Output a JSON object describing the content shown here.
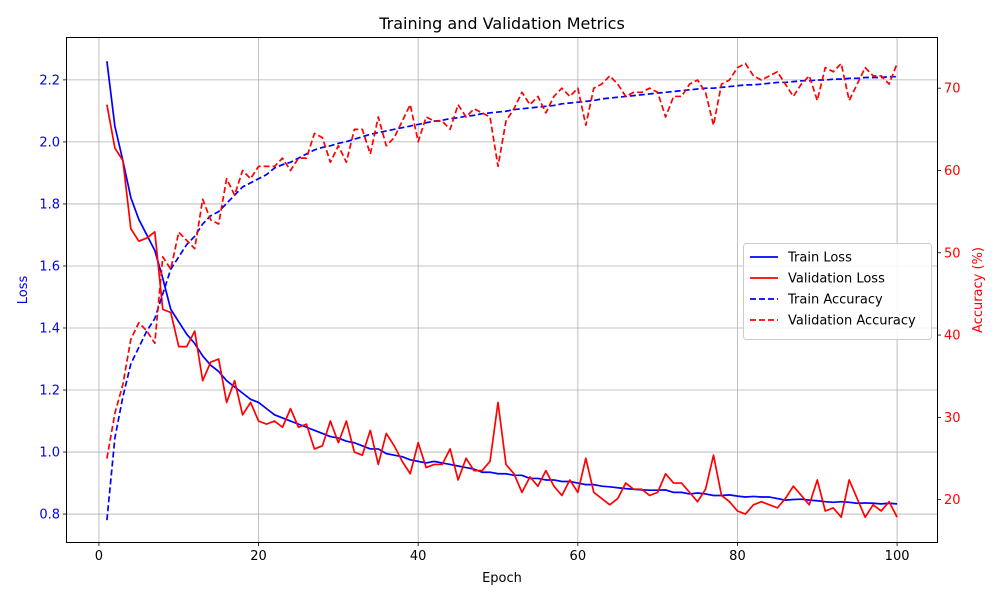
{
  "chart_data": {
    "type": "line",
    "title": "Training and Validation Metrics",
    "xlabel": "Epoch",
    "ylabel_left": "Loss",
    "ylabel_right": "Accuracy (%)",
    "xlim": [
      -4,
      105
    ],
    "ylim_left": [
      0.71,
      2.335
    ],
    "ylim_right": [
      14.85,
      76.1
    ],
    "x_ticks": [
      0,
      20,
      40,
      60,
      80,
      100
    ],
    "y_ticks_left": [
      0.8,
      1.0,
      1.2,
      1.4,
      1.6,
      1.8,
      2.0,
      2.2
    ],
    "y_ticks_right": [
      20,
      30,
      40,
      50,
      60,
      70
    ],
    "grid": true,
    "legend_position": "center-right",
    "colors": {
      "left_axis": "#0000ff",
      "right_axis": "#ff0000",
      "train": "#0000ff",
      "validation": "#ff0000"
    },
    "series": [
      {
        "name": "Train Loss",
        "axis": "left",
        "color": "#0000ff",
        "dash": false,
        "values": [
          2.26,
          2.05,
          1.94,
          1.82,
          1.75,
          1.7,
          1.65,
          1.56,
          1.46,
          1.42,
          1.38,
          1.35,
          1.31,
          1.28,
          1.26,
          1.23,
          1.21,
          1.19,
          1.17,
          1.16,
          1.14,
          1.12,
          1.11,
          1.1,
          1.09,
          1.08,
          1.07,
          1.06,
          1.05,
          1.045,
          1.035,
          1.03,
          1.02,
          1.01,
          1.01,
          0.995,
          0.99,
          0.985,
          0.975,
          0.97,
          0.965,
          0.97,
          0.965,
          0.96,
          0.955,
          0.95,
          0.945,
          0.935,
          0.935,
          0.93,
          0.93,
          0.925,
          0.925,
          0.915,
          0.915,
          0.91,
          0.91,
          0.905,
          0.905,
          0.9,
          0.895,
          0.895,
          0.89,
          0.888,
          0.885,
          0.882,
          0.88,
          0.878,
          0.877,
          0.877,
          0.878,
          0.87,
          0.87,
          0.865,
          0.868,
          0.865,
          0.86,
          0.86,
          0.862,
          0.858,
          0.855,
          0.857,
          0.855,
          0.855,
          0.85,
          0.845,
          0.847,
          0.848,
          0.845,
          0.843,
          0.84,
          0.838,
          0.84,
          0.838,
          0.835,
          0.836,
          0.835,
          0.833,
          0.835,
          0.833
        ]
      },
      {
        "name": "Validation Loss",
        "axis": "left",
        "color": "#ff0000",
        "dash": false,
        "values": [
          2.12,
          1.98,
          1.94,
          1.72,
          1.68,
          1.69,
          1.71,
          1.46,
          1.45,
          1.34,
          1.34,
          1.39,
          1.23,
          1.29,
          1.3,
          1.16,
          1.23,
          1.12,
          1.16,
          1.1,
          1.09,
          1.1,
          1.08,
          1.14,
          1.08,
          1.09,
          1.01,
          1.02,
          1.1,
          1.03,
          1.1,
          1.0,
          0.99,
          1.07,
          0.96,
          1.06,
          1.02,
          0.97,
          0.93,
          1.03,
          0.95,
          0.96,
          0.96,
          1.01,
          0.91,
          0.98,
          0.94,
          0.94,
          0.97,
          1.16,
          0.96,
          0.93,
          0.87,
          0.92,
          0.89,
          0.94,
          0.89,
          0.86,
          0.91,
          0.87,
          0.98,
          0.87,
          0.85,
          0.83,
          0.85,
          0.9,
          0.88,
          0.88,
          0.86,
          0.87,
          0.93,
          0.9,
          0.9,
          0.87,
          0.84,
          0.88,
          0.99,
          0.86,
          0.84,
          0.81,
          0.8,
          0.83,
          0.84,
          0.83,
          0.82,
          0.85,
          0.89,
          0.86,
          0.83,
          0.91,
          0.81,
          0.82,
          0.79,
          0.91,
          0.85,
          0.79,
          0.83,
          0.81,
          0.84,
          0.79
        ]
      },
      {
        "name": "Train Accuracy",
        "axis": "right",
        "color": "#0000ff",
        "dash": true,
        "values": [
          17.5,
          27.5,
          32.5,
          36.5,
          38.5,
          40.5,
          42.0,
          45.0,
          48.0,
          49.5,
          51.0,
          52.0,
          53.5,
          54.5,
          55.0,
          56.0,
          57.0,
          58.0,
          58.5,
          59.0,
          59.5,
          60.3,
          60.7,
          61.0,
          61.5,
          62.0,
          62.5,
          62.8,
          63.0,
          63.3,
          63.5,
          63.8,
          64.1,
          64.4,
          64.6,
          64.8,
          65.0,
          65.2,
          65.4,
          65.6,
          65.8,
          66.0,
          66.1,
          66.3,
          66.4,
          66.6,
          66.7,
          66.9,
          67.0,
          67.1,
          67.2,
          67.4,
          67.5,
          67.6,
          67.7,
          67.8,
          67.9,
          68.1,
          68.2,
          68.3,
          68.4,
          68.5,
          68.7,
          68.8,
          68.9,
          69.0,
          69.1,
          69.2,
          69.3,
          69.4,
          69.5,
          69.6,
          69.7,
          69.8,
          69.9,
          70.0,
          70.0,
          70.1,
          70.2,
          70.3,
          70.4,
          70.4,
          70.5,
          70.6,
          70.7,
          70.7,
          70.8,
          70.9,
          70.9,
          71.0,
          71.0,
          71.1,
          71.1,
          71.2,
          71.2,
          71.3,
          71.3,
          71.3,
          71.4,
          71.4
        ]
      },
      {
        "name": "Validation Accuracy",
        "axis": "right",
        "color": "#ff0000",
        "dash": true,
        "values": [
          25.0,
          30.5,
          34.0,
          39.5,
          41.5,
          40.5,
          39.0,
          49.5,
          48.0,
          52.5,
          51.5,
          50.5,
          56.5,
          54.0,
          53.5,
          59.0,
          57.0,
          60.0,
          59.0,
          60.5,
          60.5,
          60.5,
          61.5,
          60.0,
          61.5,
          61.5,
          64.5,
          64.0,
          61.0,
          63.0,
          61.0,
          65.0,
          65.0,
          62.0,
          66.5,
          63.0,
          64.0,
          66.0,
          68.0,
          63.5,
          66.5,
          66.0,
          66.0,
          65.0,
          68.0,
          66.5,
          67.5,
          67.0,
          66.5,
          60.5,
          66.0,
          67.5,
          69.5,
          68.0,
          69.0,
          67.0,
          69.0,
          70.0,
          69.0,
          70.0,
          65.5,
          70.0,
          70.5,
          71.5,
          70.5,
          69.0,
          69.5,
          69.5,
          70.0,
          69.5,
          66.5,
          69.0,
          69.0,
          70.5,
          71.0,
          69.5,
          65.5,
          70.5,
          71.0,
          72.5,
          73.0,
          71.5,
          71.0,
          71.5,
          72.0,
          70.5,
          69.0,
          70.5,
          71.5,
          68.5,
          72.5,
          72.0,
          73.0,
          68.5,
          70.5,
          72.5,
          71.5,
          71.5,
          70.5,
          73.0
        ]
      }
    ]
  }
}
